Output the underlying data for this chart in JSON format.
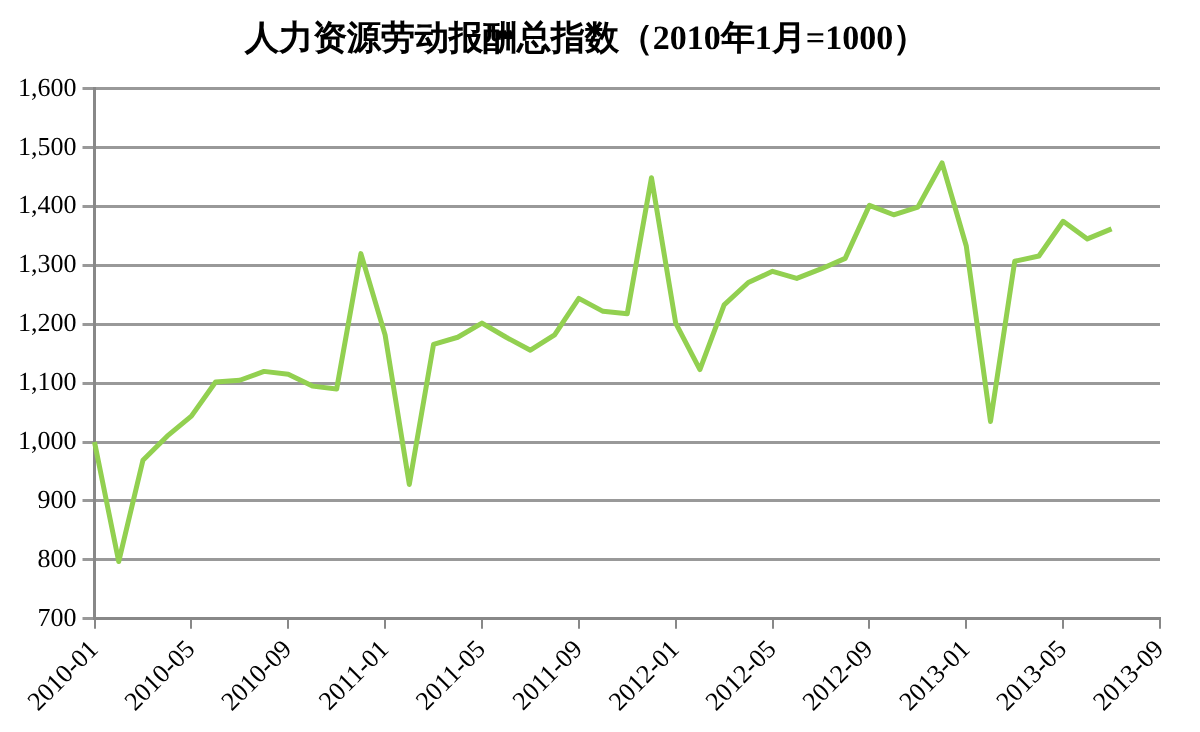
{
  "chart_data": {
    "type": "line",
    "title": "人力资源劳动报酬总指数（2010年1月=1000）",
    "categories": [
      "2010-01",
      null,
      null,
      null,
      "2010-05",
      null,
      null,
      null,
      "2010-09",
      null,
      null,
      null,
      "2011-01",
      null,
      null,
      null,
      "2011-05",
      null,
      null,
      null,
      "2011-09",
      null,
      null,
      null,
      "2012-01",
      null,
      null,
      null,
      "2012-05",
      null,
      null,
      null,
      "2012-09",
      null,
      null,
      null,
      "2013-01",
      null,
      null,
      null,
      "2013-05",
      null,
      null,
      null,
      "2013-09"
    ],
    "series": [
      {
        "color": "#92d050",
        "values": [
          1000,
          797,
          969,
          1010,
          1044,
          1102,
          1105,
          1120,
          1115,
          1095,
          1090,
          1320,
          1182,
          928,
          1166,
          1178,
          1202,
          1178,
          1156,
          1182,
          1244,
          1222,
          1218,
          1449,
          1202,
          1123,
          1233,
          1271,
          1290,
          1278,
          1294,
          1312,
          1402,
          1386,
          1399,
          1474,
          1333,
          1035,
          1307,
          1316,
          1375,
          1345,
          1362,
          null,
          null
        ]
      }
    ],
    "ylim": [
      700,
      1600
    ],
    "yticks": [
      {
        "value": 700,
        "label": "700"
      },
      {
        "value": 800,
        "label": "800"
      },
      {
        "value": 900,
        "label": "900"
      },
      {
        "value": 1000,
        "label": "1,000"
      },
      {
        "value": 1100,
        "label": "1,100"
      },
      {
        "value": 1200,
        "label": "1,200"
      },
      {
        "value": 1300,
        "label": "1,300"
      },
      {
        "value": 1400,
        "label": "1,400"
      },
      {
        "value": 1500,
        "label": "1,500"
      },
      {
        "value": 1600,
        "label": "1,600"
      }
    ],
    "grid": "y",
    "legend": false,
    "marker": "none",
    "line_style": "solid"
  }
}
